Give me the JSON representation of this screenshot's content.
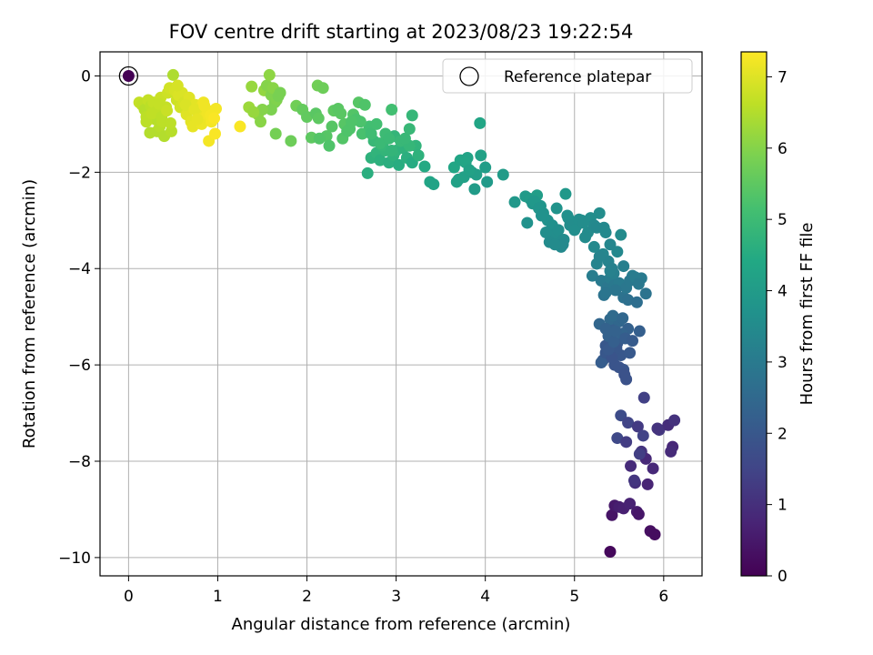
{
  "chart_data": {
    "type": "scatter",
    "title": "FOV centre drift starting at 2023/08/23 19:22:54",
    "xlabel": "Angular distance from reference (arcmin)",
    "ylabel": "Rotation from reference (arcmin)",
    "xlim": [
      -0.32,
      6.43
    ],
    "ylim": [
      -10.38,
      0.5
    ],
    "xticks": [
      0,
      1,
      2,
      3,
      4,
      5,
      6
    ],
    "yticks": [
      0,
      -2,
      -4,
      -6,
      -8,
      -10
    ],
    "xtick_labels": [
      "0",
      "1",
      "2",
      "3",
      "4",
      "5",
      "6"
    ],
    "ytick_labels": [
      "0",
      "−2",
      "−4",
      "−6",
      "−8",
      "−10"
    ],
    "grid": true,
    "colormap": "viridis",
    "colorbar": {
      "label": "Hours from first FF file",
      "range": [
        0,
        7.35
      ],
      "ticks": [
        0,
        1,
        2,
        3,
        4,
        5,
        6,
        7
      ],
      "tick_labels": [
        "0",
        "1",
        "2",
        "3",
        "4",
        "5",
        "6",
        "7"
      ]
    },
    "legend": {
      "position": "top-right",
      "entries": [
        "Reference platepar"
      ]
    },
    "reference_point": {
      "x": 0,
      "y": 0,
      "hours": 0
    },
    "series": [
      {
        "x": [
          5.4,
          5.42,
          5.45,
          5.5,
          5.55,
          5.62,
          5.7,
          5.72,
          5.85,
          5.9,
          5.48,
          5.58,
          5.63,
          5.68,
          5.75,
          5.8,
          5.82,
          5.95,
          6.05,
          6.1,
          6.12,
          6.08,
          5.52,
          5.6,
          5.67,
          5.71,
          5.73,
          5.77,
          5.88,
          5.93,
          5.78
        ],
        "y": [
          -9.88,
          -9.12,
          -8.92,
          -8.95,
          -8.98,
          -8.88,
          -9.05,
          -9.1,
          -9.45,
          -9.52,
          -7.52,
          -7.6,
          -8.1,
          -8.45,
          -7.8,
          -7.95,
          -8.48,
          -7.35,
          -7.25,
          -7.7,
          -7.15,
          -7.8,
          -7.05,
          -7.2,
          -8.4,
          -7.28,
          -7.85,
          -7.47,
          -8.15,
          -7.32,
          -6.68
        ],
        "hours": [
          0.15,
          0.4,
          0.5,
          0.6,
          0.65,
          0.7,
          0.55,
          0.45,
          0.3,
          0.25,
          1.6,
          1.3,
          0.9,
          1.0,
          1.1,
          0.85,
          0.75,
          1.2,
          0.95,
          0.8,
          1.05,
          0.9,
          1.7,
          1.5,
          1.15,
          1.25,
          1.35,
          1.45,
          0.85,
          1.1,
          1.4
        ]
      },
      {
        "x": [
          5.28,
          5.32,
          5.35,
          5.38,
          5.42,
          5.45,
          5.48,
          5.52,
          5.55,
          5.58,
          5.6,
          5.62,
          5.3,
          5.4,
          5.5,
          5.43,
          5.47,
          5.53,
          5.57,
          5.35,
          5.65,
          5.73,
          5.35,
          5.42,
          5.38,
          5.44,
          5.5,
          5.54,
          5.56,
          5.46
        ],
        "y": [
          -5.15,
          -5.9,
          -5.6,
          -5.4,
          -5.2,
          -6.0,
          -5.55,
          -5.8,
          -6.1,
          -6.3,
          -5.25,
          -5.75,
          -5.95,
          -5.05,
          -5.1,
          -4.98,
          -5.65,
          -5.35,
          -5.45,
          -5.25,
          -5.5,
          -5.3,
          -5.75,
          -5.85,
          -5.68,
          -5.52,
          -6.05,
          -5.03,
          -6.2,
          -5.3
        ],
        "hours": [
          2.4,
          2.1,
          2.0,
          2.3,
          2.2,
          1.9,
          2.1,
          2.0,
          1.95,
          1.85,
          2.25,
          2.05,
          2.15,
          2.5,
          2.45,
          2.55,
          2.0,
          2.35,
          2.15,
          2.3,
          2.1,
          2.2,
          2.0,
          1.9,
          2.05,
          2.2,
          1.9,
          2.45,
          1.85,
          2.3
        ]
      },
      {
        "x": [
          5.2,
          5.25,
          5.3,
          5.33,
          5.36,
          5.4,
          5.45,
          5.5,
          5.55,
          5.6,
          5.65,
          5.7,
          5.75,
          5.8,
          5.32,
          5.38,
          5.42,
          5.48,
          5.52,
          5.58,
          5.62,
          5.68,
          5.35,
          5.28,
          5.22,
          5.44,
          5.46,
          5.55,
          5.72,
          5.4
        ],
        "y": [
          -4.15,
          -3.9,
          -4.25,
          -4.55,
          -4.4,
          -4.2,
          -4.35,
          -4.3,
          -4.6,
          -4.65,
          -4.15,
          -4.7,
          -4.2,
          -4.52,
          -3.7,
          -3.85,
          -4.0,
          -3.65,
          -3.3,
          -4.4,
          -4.25,
          -4.18,
          -4.5,
          -3.75,
          -3.55,
          -4.1,
          -4.45,
          -3.95,
          -4.32,
          -4.05
        ],
        "hours": [
          3.1,
          3.3,
          3.0,
          2.8,
          2.9,
          3.05,
          2.95,
          3.0,
          2.75,
          2.7,
          3.1,
          2.65,
          3.0,
          2.8,
          3.35,
          3.25,
          3.2,
          3.4,
          3.5,
          2.9,
          2.95,
          3.05,
          2.85,
          3.3,
          3.45,
          3.15,
          2.85,
          3.15,
          2.95,
          3.2
        ]
      },
      {
        "x": [
          4.33,
          4.45,
          4.5,
          4.53,
          4.58,
          4.62,
          4.65,
          4.7,
          4.75,
          4.78,
          4.82,
          4.85,
          4.88,
          4.9,
          4.93,
          5.02,
          5.08,
          5.15,
          5.18,
          5.22,
          5.28,
          5.33,
          5.4,
          4.47,
          4.55,
          4.6,
          4.68,
          4.72,
          4.8,
          4.87,
          4.92,
          5.12,
          5.25,
          5.35,
          4.63,
          4.78,
          4.95,
          5.0,
          5.05,
          5.1
        ],
        "y": [
          -2.62,
          -2.5,
          -2.55,
          -2.65,
          -2.48,
          -2.7,
          -2.85,
          -3.0,
          -3.1,
          -3.3,
          -3.2,
          -3.55,
          -3.4,
          -2.45,
          -2.95,
          -3.12,
          -3.0,
          -3.25,
          -2.95,
          -3.1,
          -2.85,
          -3.15,
          -3.5,
          -3.05,
          -2.6,
          -2.75,
          -3.25,
          -3.45,
          -2.75,
          -3.5,
          -2.9,
          -3.35,
          -3.15,
          -3.25,
          -2.9,
          -3.5,
          -3.1,
          -3.2,
          -2.98,
          -3.05
        ],
        "hours": [
          3.9,
          3.95,
          4.0,
          3.85,
          4.05,
          3.8,
          3.75,
          3.7,
          3.65,
          3.55,
          3.6,
          3.45,
          3.5,
          3.9,
          3.65,
          3.55,
          3.6,
          3.5,
          3.6,
          3.45,
          3.55,
          3.4,
          3.35,
          3.7,
          3.9,
          3.8,
          3.6,
          3.5,
          3.75,
          3.45,
          3.65,
          3.5,
          3.4,
          3.45,
          3.7,
          3.5,
          3.55,
          3.6,
          3.6,
          3.55
        ]
      },
      {
        "x": [
          2.68,
          2.72,
          2.78,
          2.82,
          2.88,
          2.92,
          2.97,
          3.0,
          3.03,
          3.08,
          3.12,
          3.18,
          3.22,
          3.32,
          3.38,
          3.42,
          3.65,
          3.68,
          3.72,
          3.76,
          3.8,
          3.85,
          3.88,
          3.95,
          4.0,
          4.02,
          4.2,
          3.9,
          3.94,
          2.98,
          3.05,
          3.15,
          2.75,
          2.85,
          2.95,
          3.1,
          3.25,
          3.7,
          3.78,
          3.82
        ],
        "y": [
          -2.02,
          -1.7,
          -1.6,
          -1.75,
          -1.55,
          -1.8,
          -1.65,
          -1.55,
          -1.85,
          -1.5,
          -1.7,
          -1.8,
          -1.45,
          -1.88,
          -2.2,
          -2.25,
          -1.9,
          -2.2,
          -1.75,
          -2.1,
          -1.7,
          -2.0,
          -2.35,
          -1.65,
          -1.9,
          -2.2,
          -2.05,
          -2.05,
          -0.98,
          -1.25,
          -1.35,
          -1.45,
          -1.35,
          -1.45,
          -1.55,
          -1.3,
          -1.65,
          -2.15,
          -1.8,
          -1.95
        ],
        "hours": [
          4.6,
          4.7,
          4.75,
          4.65,
          4.8,
          4.6,
          4.7,
          4.75,
          4.55,
          4.7,
          4.6,
          4.5,
          4.75,
          4.45,
          4.3,
          4.25,
          4.35,
          4.2,
          4.3,
          4.15,
          4.25,
          4.1,
          4.0,
          4.2,
          4.05,
          3.95,
          4.0,
          4.1,
          4.3,
          4.8,
          4.9,
          4.85,
          4.9,
          4.85,
          4.8,
          4.9,
          4.7,
          4.2,
          4.3,
          4.2
        ]
      },
      {
        "x": [
          1.82,
          1.88,
          1.95,
          2.0,
          2.05,
          2.1,
          2.12,
          2.18,
          2.22,
          2.25,
          2.3,
          2.35,
          2.4,
          2.42,
          2.48,
          2.52,
          2.55,
          2.58,
          2.62,
          2.65,
          2.7,
          2.72,
          2.78,
          2.82,
          2.88,
          2.92,
          2.95,
          3.18,
          2.13,
          2.14,
          2.28,
          2.38,
          2.45,
          2.6,
          3.15,
          2.5
        ],
        "y": [
          -1.35,
          -0.62,
          -0.7,
          -0.85,
          -1.28,
          -0.78,
          -0.2,
          -0.25,
          -1.25,
          -1.45,
          -0.72,
          -0.68,
          -1.3,
          -1.0,
          -1.1,
          -0.8,
          -0.9,
          -0.55,
          -1.2,
          -0.6,
          -1.05,
          -1.2,
          -1.0,
          -1.4,
          -1.2,
          -1.3,
          -0.7,
          -0.82,
          -0.88,
          -1.3,
          -1.05,
          -0.78,
          -1.15,
          -0.95,
          -1.1,
          -0.95
        ],
        "hours": [
          5.7,
          5.75,
          5.6,
          5.55,
          5.5,
          5.45,
          5.75,
          5.7,
          5.4,
          5.3,
          5.5,
          5.45,
          5.35,
          5.4,
          5.3,
          5.35,
          5.25,
          5.4,
          5.2,
          5.3,
          5.1,
          5.05,
          5.1,
          4.95,
          5.0,
          4.95,
          5.1,
          4.85,
          5.5,
          5.35,
          5.4,
          5.45,
          5.3,
          5.25,
          4.9,
          5.3
        ]
      },
      {
        "x": [
          1.38,
          1.45,
          1.48,
          1.52,
          1.55,
          1.58,
          1.6,
          1.62,
          1.64,
          1.66,
          1.68,
          1.6,
          1.65,
          1.7,
          1.5,
          1.35,
          1.4
        ],
        "y": [
          -0.22,
          -0.8,
          -0.95,
          -0.3,
          -0.2,
          0.02,
          -0.4,
          -0.25,
          -0.55,
          -0.5,
          -0.42,
          -0.7,
          -1.2,
          -0.35,
          -0.7,
          -0.65,
          -0.75
        ],
        "hours": [
          6.2,
          6.1,
          6.05,
          6.15,
          6.0,
          6.1,
          5.95,
          6.05,
          5.9,
          5.95,
          5.85,
          5.9,
          5.8,
          5.85,
          6.0,
          6.25,
          6.2
        ]
      },
      {
        "x": [
          0.12,
          0.15,
          0.18,
          0.2,
          0.22,
          0.24,
          0.25,
          0.28,
          0.3,
          0.32,
          0.33,
          0.35,
          0.36,
          0.38,
          0.4,
          0.42,
          0.44,
          0.46,
          0.48,
          0.5,
          0.52,
          0.54,
          0.56,
          0.58,
          0.6,
          0.62,
          0.65,
          0.68,
          0.7,
          0.72,
          0.75,
          0.78,
          0.8,
          0.82,
          0.84,
          0.86,
          0.88,
          0.9,
          0.93,
          0.95,
          0.97,
          0.98,
          1.25,
          0.2,
          0.26,
          0.34,
          0.37,
          0.43,
          0.47,
          0.55,
          0.64,
          0.74,
          0.77,
          0.85,
          0.92,
          0.96
        ],
        "y": [
          -0.55,
          -0.6,
          -0.7,
          -0.85,
          -0.5,
          -1.18,
          -0.62,
          -0.55,
          -0.9,
          -1.15,
          -0.7,
          -1.05,
          -0.45,
          -0.95,
          -1.25,
          -0.65,
          -0.35,
          -0.25,
          -1.15,
          0.02,
          -0.3,
          -0.5,
          -0.4,
          -0.65,
          -0.35,
          -0.55,
          -0.8,
          -0.45,
          -0.95,
          -1.05,
          -0.6,
          -0.75,
          -0.65,
          -1.0,
          -0.55,
          -0.85,
          -0.8,
          -1.35,
          -0.95,
          -0.72,
          -1.2,
          -0.68,
          -1.05,
          -0.95,
          -0.78,
          -0.58,
          -0.85,
          -0.72,
          -0.98,
          -0.2,
          -0.6,
          -0.7,
          -0.9,
          -0.62,
          -0.82,
          -0.88
        ],
        "hours": [
          6.7,
          6.65,
          6.55,
          6.6,
          6.7,
          6.5,
          6.6,
          6.7,
          6.55,
          6.5,
          6.65,
          6.55,
          6.75,
          6.6,
          6.5,
          6.7,
          6.8,
          6.85,
          6.55,
          6.45,
          6.9,
          6.8,
          6.95,
          6.85,
          6.95,
          6.9,
          7.0,
          7.0,
          7.05,
          7.1,
          7.05,
          7.15,
          7.1,
          7.15,
          7.2,
          7.15,
          7.2,
          7.25,
          7.25,
          7.2,
          7.3,
          7.25,
          7.3,
          6.6,
          6.65,
          6.7,
          6.6,
          6.75,
          6.6,
          6.9,
          6.95,
          7.05,
          7.1,
          7.2,
          7.25,
          7.3
        ]
      }
    ]
  }
}
